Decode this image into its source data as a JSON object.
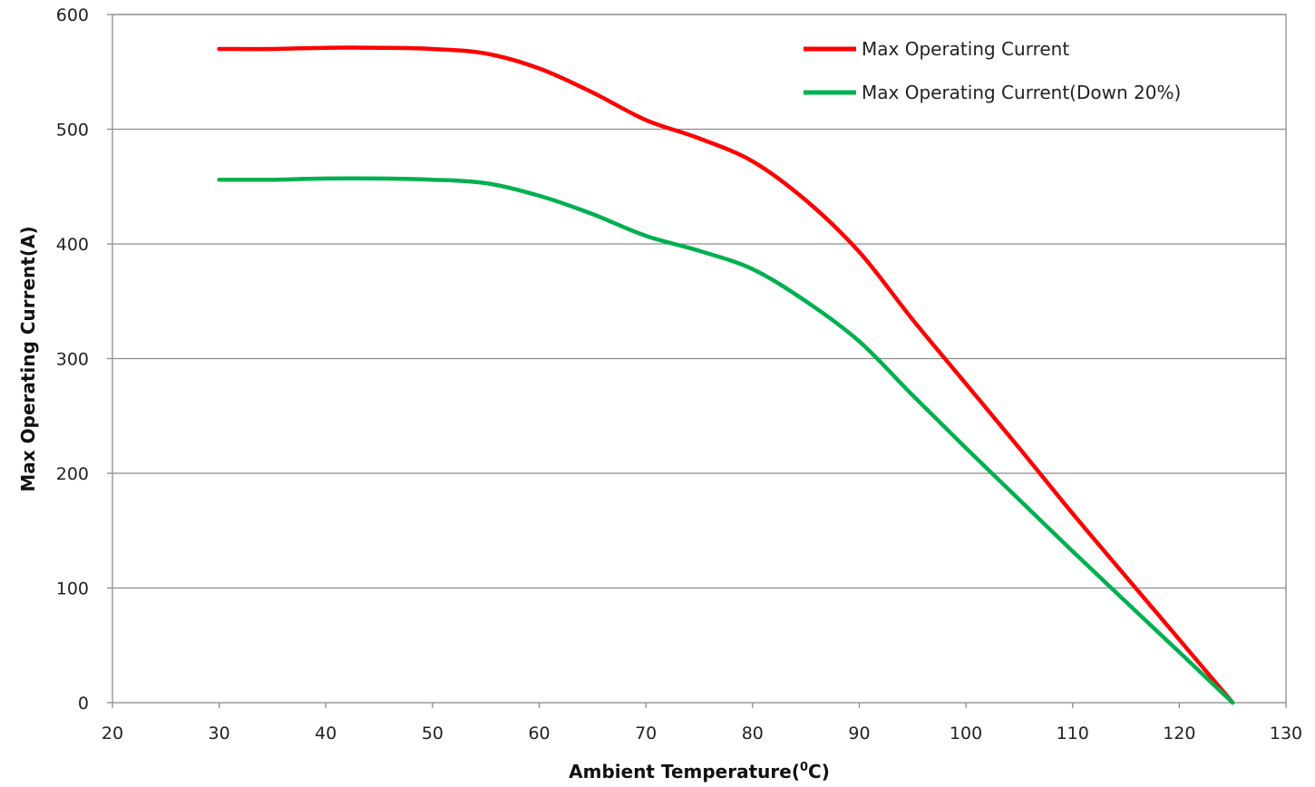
{
  "chart_data": {
    "type": "line",
    "title": "",
    "xlabel": "Ambient Temperature(",
    "xlabel_sup": "0",
    "xlabel_tail": "C)",
    "ylabel": "Max Operating Current(A)",
    "xlim": [
      20,
      130
    ],
    "ylim": [
      0,
      600
    ],
    "xticks": [
      20,
      30,
      40,
      50,
      60,
      70,
      80,
      90,
      100,
      110,
      120,
      130
    ],
    "yticks": [
      0,
      100,
      200,
      300,
      400,
      500,
      600
    ],
    "grid": "horizontal",
    "legend_position": "top-right",
    "series": [
      {
        "name": "Max Operating Current",
        "color": "#ff0000",
        "x": [
          30,
          35,
          40,
          45,
          50,
          55,
          60,
          65,
          70,
          75,
          80,
          85,
          90,
          95,
          100,
          105,
          110,
          115,
          120,
          125
        ],
        "y": [
          570,
          570,
          571,
          571,
          570,
          566,
          553,
          532,
          508,
          492,
          472,
          438,
          393,
          334,
          278,
          222,
          165,
          110,
          55,
          0
        ]
      },
      {
        "name": "Max Operating Current(Down 20%)",
        "color": "#00b050",
        "x": [
          30,
          35,
          40,
          45,
          50,
          55,
          60,
          65,
          70,
          75,
          80,
          85,
          90,
          95,
          100,
          105,
          110,
          115,
          120,
          125
        ],
        "y": [
          456,
          456,
          457,
          457,
          456,
          453,
          442,
          426,
          407,
          394,
          378,
          350,
          315,
          268,
          222,
          177,
          132,
          88,
          44,
          0
        ]
      }
    ]
  }
}
